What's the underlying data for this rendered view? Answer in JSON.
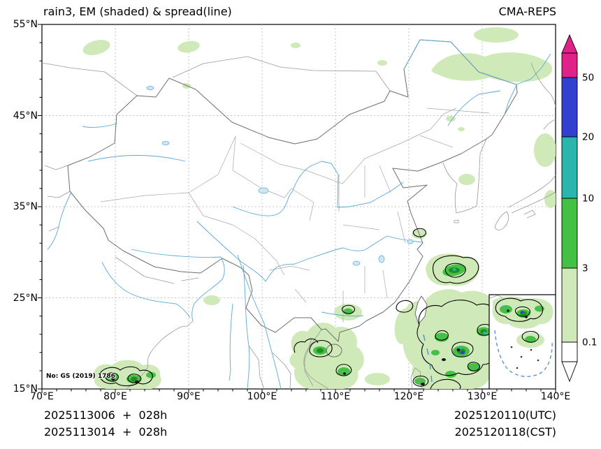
{
  "header": {
    "title": "rain3, EM (shaded) & spread(line)",
    "source": "CMA-REPS"
  },
  "axes": {
    "x_range": [
      70,
      140
    ],
    "y_range": [
      15,
      55
    ],
    "x_ticks": [
      {
        "v": 70,
        "label": "70°E"
      },
      {
        "v": 80,
        "label": "80°E"
      },
      {
        "v": 90,
        "label": "90°E"
      },
      {
        "v": 100,
        "label": "100°E"
      },
      {
        "v": 110,
        "label": "110°E"
      },
      {
        "v": 120,
        "label": "120°E"
      },
      {
        "v": 130,
        "label": "130°E"
      },
      {
        "v": 140,
        "label": "140°E"
      }
    ],
    "y_ticks": [
      {
        "v": 15,
        "label": "15°N"
      },
      {
        "v": 25,
        "label": "25°N"
      },
      {
        "v": 35,
        "label": "35°N"
      },
      {
        "v": 45,
        "label": "45°N"
      },
      {
        "v": 55,
        "label": "55°N"
      }
    ]
  },
  "colorbar": {
    "tick_labels": [
      "50",
      "20",
      "10",
      "3",
      "0.1"
    ],
    "segment_colors_top_to_bottom": [
      "#e0218a",
      "#3340cf",
      "#2ab5ad",
      "#42c142",
      "#cfeab8",
      "#ffffff"
    ],
    "over_color": "#e0218a",
    "under_color": "#ffffff"
  },
  "map": {
    "license_note": "No: GS (2019) 1786"
  },
  "footer": {
    "left": [
      "2025113006  +  028h",
      "2025113014  +  028h"
    ],
    "right": [
      "2025120110(UTC)",
      "2025120118(CST)"
    ]
  },
  "chart_data": {
    "type": "heatmap",
    "title": "rain3, EM (shaded) & spread(line)",
    "model": "CMA-REPS",
    "shaded_field": "rain3 ensemble mean (shaded)",
    "contour_field": "ensemble spread (black lines)",
    "x_axis": {
      "min": 70,
      "max": 140,
      "major_step": 10,
      "unit": "°E"
    },
    "y_axis": {
      "min": 15,
      "max": 55,
      "major_step": 10,
      "unit": "°N"
    },
    "grid": "dashed gray at major ticks",
    "colorbar_levels": [
      0.1,
      3,
      10,
      20,
      50
    ],
    "colorbar_colors": [
      "#ffffff",
      "#cfeab8",
      "#42c142",
      "#2ab5ad",
      "#3340cf",
      "#e0218a"
    ],
    "colorbar_extend": "both",
    "init_times": [
      "2025113006",
      "2025113014"
    ],
    "lead_hours": 28,
    "valid_times": [
      "2025120110(UTC)",
      "2025120118(CST)"
    ],
    "precip_regions": [
      {
        "area": "East China Sea NE of Taiwan",
        "approx_lon": 125,
        "approx_lat": 26.5,
        "peak_band": "3-10"
      },
      {
        "area": "Philippine Sea / Ryukyu cluster",
        "approx_lon": 127,
        "approx_lat": 21.5,
        "peak_band": ">20 isolated cores"
      },
      {
        "area": "Vietnam coast / Hainan",
        "approx_lon": 108,
        "approx_lat": 18,
        "peak_band": "3-10"
      },
      {
        "area": "Bay of Bengal / S India (bottom-left)",
        "approx_lon": 82,
        "approx_lat": 16,
        "peak_band": "10-20"
      },
      {
        "area": "South China Sea (inset box)",
        "approx_lon": 113,
        "approx_lat": 13,
        "peak_band": "10-20"
      },
      {
        "area": "Amur region (top-right)",
        "approx_lon": 133,
        "approx_lat": 50,
        "peak_band": "0.1-3"
      },
      {
        "area": "scattered patches along northern border",
        "approx_lon": 80,
        "approx_lat": 53,
        "peak_band": "0.1-3"
      }
    ]
  }
}
